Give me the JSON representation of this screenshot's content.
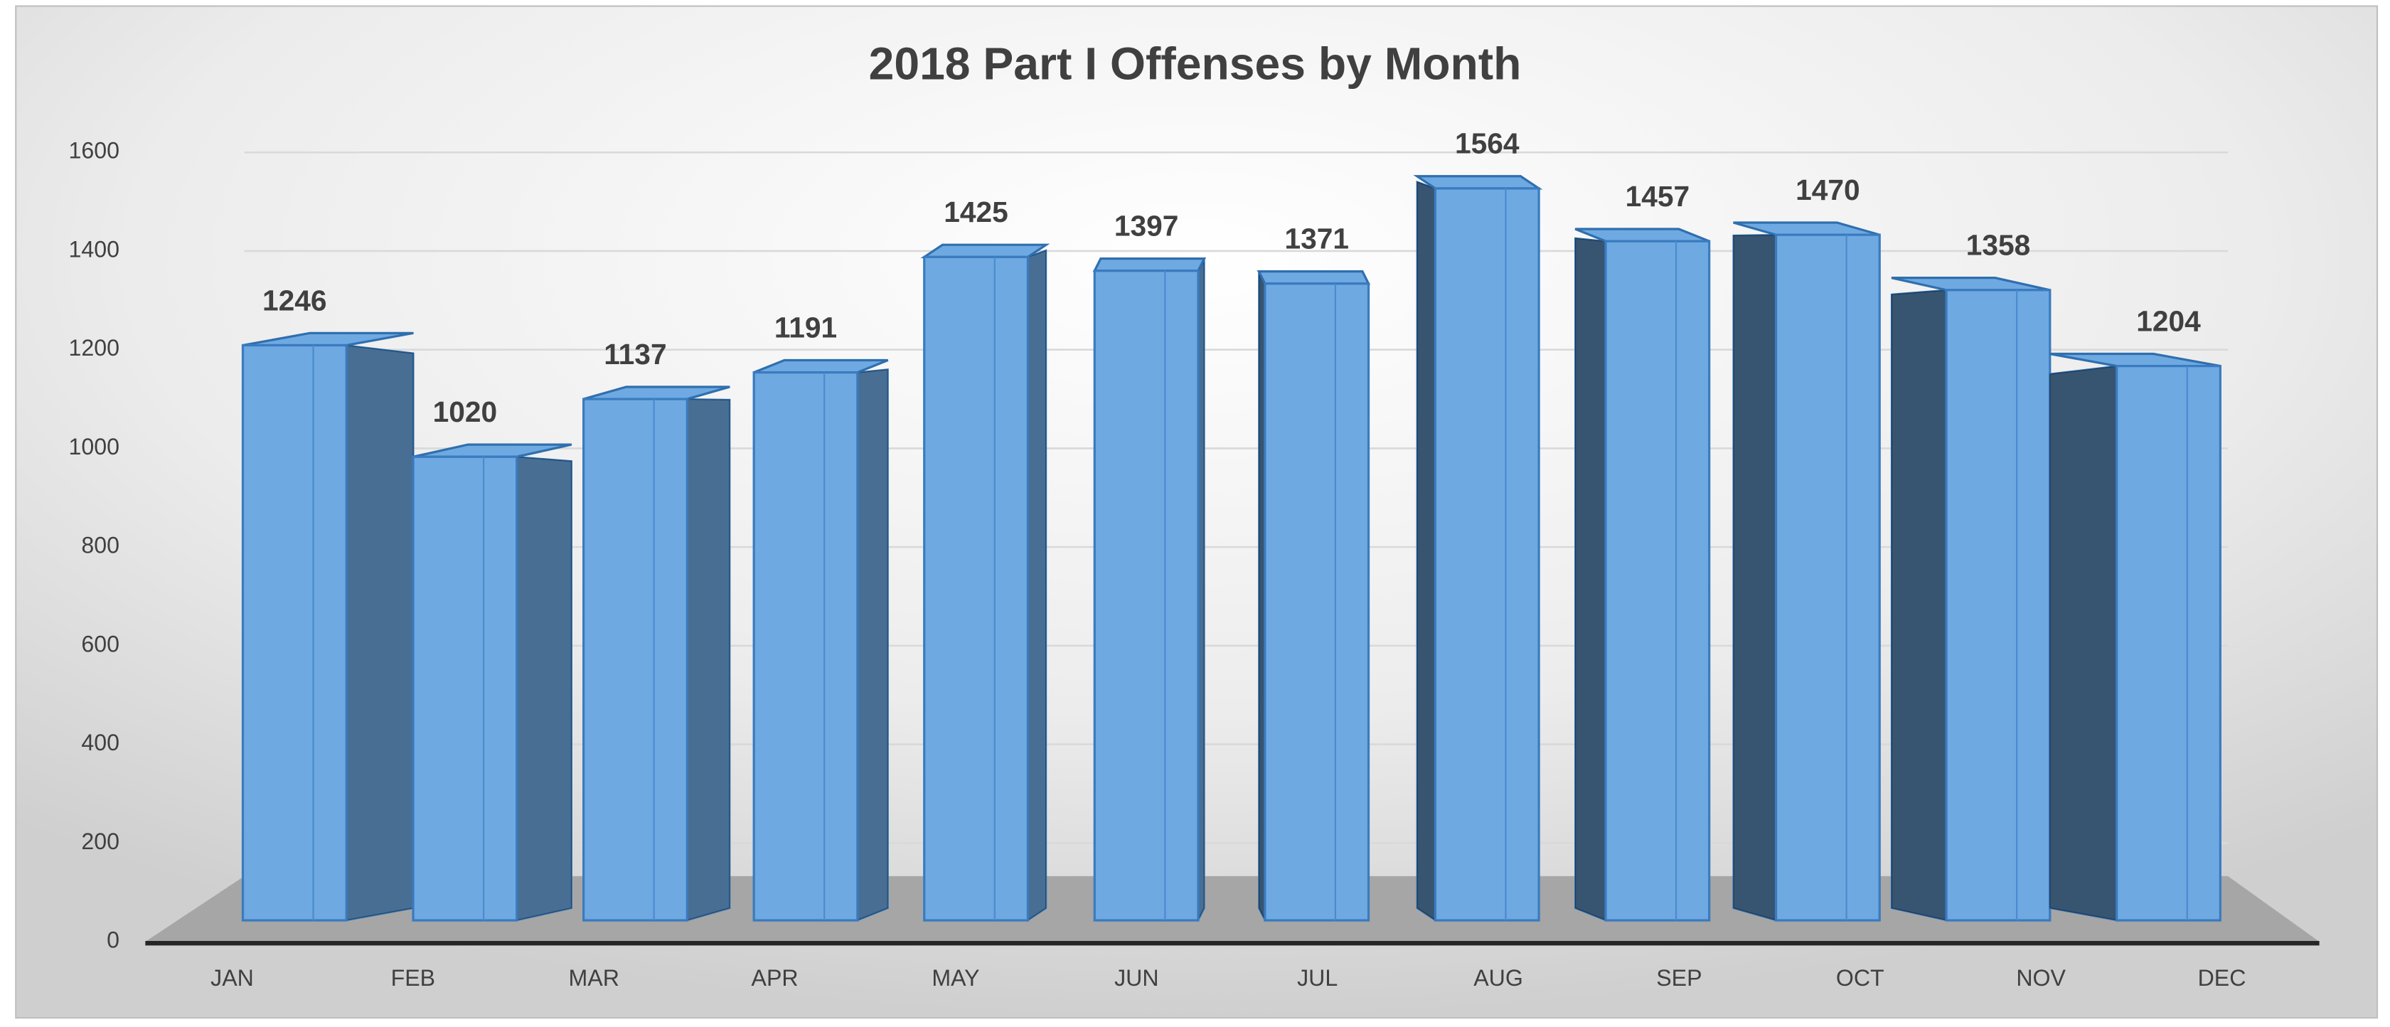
{
  "chart_data": {
    "type": "bar",
    "title": "2018 Part I Offenses by Month",
    "categories": [
      "JAN",
      "FEB",
      "MAR",
      "APR",
      "MAY",
      "JUN",
      "JUL",
      "AUG",
      "SEP",
      "OCT",
      "NOV",
      "DEC"
    ],
    "values": [
      1246,
      1020,
      1137,
      1191,
      1425,
      1397,
      1371,
      1564,
      1457,
      1470,
      1358,
      1204
    ],
    "color": "#6fa9e2",
    "ylim": [
      0,
      1600
    ],
    "yticks": [
      0,
      200,
      400,
      600,
      800,
      1000,
      1200,
      1400,
      1600
    ],
    "grid": true
  }
}
